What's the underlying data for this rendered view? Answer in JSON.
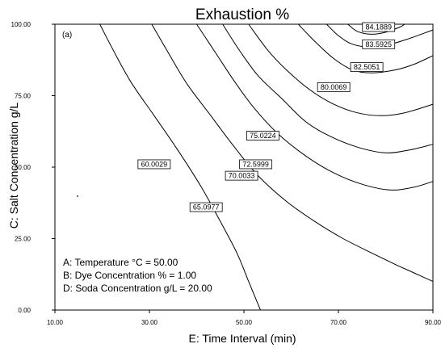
{
  "chart_data": {
    "type": "contour",
    "title": "Exhaustion %",
    "panel_label": "(a)",
    "xlabel": "E: Time Interval (min)",
    "ylabel": "C: Salt Concentration g/L",
    "xlim": [
      10,
      90
    ],
    "ylim": [
      0,
      100
    ],
    "x_ticks": [
      "10.00",
      "30.00",
      "50.00",
      "70.00",
      "90.00"
    ],
    "y_ticks": [
      "0.00",
      "25.00",
      "50.00",
      "75.00",
      "100.00"
    ],
    "grid": false,
    "contours": [
      {
        "level": "60.0029",
        "points": [
          [
            19.5,
            100
          ],
          [
            22,
            92
          ],
          [
            26,
            80
          ],
          [
            31,
            68
          ],
          [
            36,
            56
          ],
          [
            41,
            43
          ],
          [
            45,
            31
          ],
          [
            48.5,
            20
          ],
          [
            51,
            10
          ],
          [
            53.5,
            0
          ]
        ],
        "label_at": [
          31,
          51
        ]
      },
      {
        "level": "65.0977",
        "points": [
          [
            30.5,
            100
          ],
          [
            34,
            90
          ],
          [
            38,
            79
          ],
          [
            43,
            68
          ],
          [
            48,
            57
          ],
          [
            53,
            47
          ],
          [
            59,
            38
          ],
          [
            65,
            31
          ],
          [
            71,
            25
          ],
          [
            77,
            20
          ],
          [
            82,
            16
          ],
          [
            86,
            13
          ],
          [
            90,
            10
          ]
        ],
        "label_at": [
          42,
          36
        ]
      },
      {
        "level": "70.0033",
        "points": [
          [
            40,
            100
          ],
          [
            44,
            90
          ],
          [
            48,
            80
          ],
          [
            52,
            71
          ],
          [
            57,
            62
          ],
          [
            63,
            54
          ],
          [
            69,
            48
          ],
          [
            75,
            44
          ],
          [
            81,
            42
          ],
          [
            86,
            43
          ],
          [
            90,
            45
          ]
        ],
        "label_at": [
          49.5,
          47
        ]
      },
      {
        "level": "72.5999",
        "points": [
          [
            45.5,
            100
          ],
          [
            49,
            91
          ],
          [
            53,
            82
          ],
          [
            58,
            74
          ],
          [
            63,
            66
          ],
          [
            68,
            61
          ],
          [
            74,
            57
          ],
          [
            80,
            55
          ],
          [
            85,
            56
          ],
          [
            90,
            58
          ]
        ],
        "label_at": [
          52.5,
          51
        ]
      },
      {
        "level": "75.0224",
        "points": [
          [
            51,
            100
          ],
          [
            55,
            91
          ],
          [
            59,
            84
          ],
          [
            64,
            77
          ],
          [
            69,
            72
          ],
          [
            74,
            69
          ],
          [
            79,
            68
          ],
          [
            84,
            69
          ],
          [
            90,
            72
          ]
        ],
        "label_at": [
          54,
          61
        ]
      },
      {
        "level": "80.0069",
        "points": [
          [
            61.5,
            100
          ],
          [
            65,
            94
          ],
          [
            69,
            88
          ],
          [
            73,
            84
          ],
          [
            77,
            83
          ],
          [
            82,
            84
          ],
          [
            86,
            86
          ],
          [
            90,
            89
          ]
        ],
        "label_at": [
          69,
          78
        ]
      },
      {
        "level": "82.5051",
        "points": [
          [
            67.5,
            100
          ],
          [
            70,
            96
          ],
          [
            73,
            93
          ],
          [
            77,
            92
          ],
          [
            81,
            93
          ],
          [
            85,
            95
          ],
          [
            90,
            98
          ]
        ],
        "label_at": [
          76,
          85
        ]
      },
      {
        "level": "83.5925",
        "points": [
          [
            72,
            100
          ],
          [
            74,
            97.5
          ],
          [
            77,
            96.5
          ],
          [
            80,
            97.2
          ],
          [
            83,
            99
          ],
          [
            84,
            100
          ]
        ],
        "label_at": [
          78.5,
          93
        ]
      },
      {
        "level": "84.1889",
        "points": [
          [
            75,
            100
          ],
          [
            76.5,
            99.3
          ],
          [
            78,
            99
          ],
          [
            79.5,
            99.3
          ],
          [
            81,
            100
          ]
        ],
        "label_at": [
          78.5,
          99
        ]
      }
    ]
  },
  "factors": [
    "A: Temperature °C = 50.00",
    "B: Dye Concentration % = 1.00",
    "D: Soda Concentration g/L = 20.00"
  ]
}
